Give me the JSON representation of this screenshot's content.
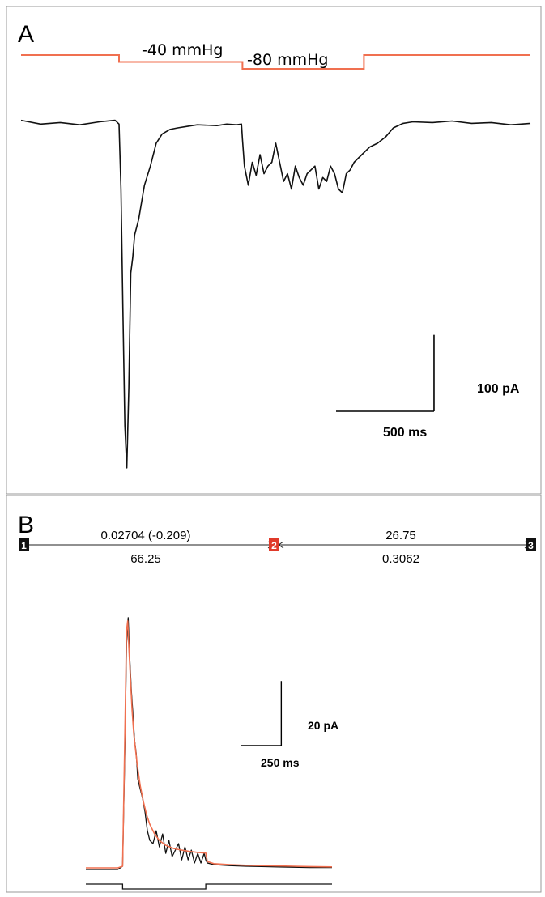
{
  "colors": {
    "pressure_trace": "#f07050",
    "current_trace": "#111111",
    "fit_trace": "#f07050",
    "panel_border": "#999999",
    "cursor_box": "#111111",
    "cursor_box_active": "#e03a2a"
  },
  "panel_a": {
    "letter": "A",
    "pressure_labels": [
      "-40 mmHg",
      "-80 mmHg"
    ],
    "scale_bar": {
      "y_label": "100 pA",
      "x_label": "500 ms"
    }
  },
  "panel_b": {
    "letter": "B",
    "cursors": [
      "1",
      "2",
      "3"
    ],
    "cursor_values": {
      "seg1_top": "0.02704 (-0.209)",
      "seg1_bottom": "66.25",
      "seg2_top": "26.75",
      "seg2_bottom": "0.3062"
    },
    "scale_bar": {
      "y_label": "20 pA",
      "x_label": "250 ms"
    }
  },
  "chart_data": [
    {
      "type": "line",
      "panel": "A",
      "title": "",
      "xlabel": "",
      "ylabel": "",
      "x_unit": "ms",
      "y_unit": "pA",
      "xlim": [
        0,
        2600
      ],
      "ylim": [
        -470,
        25
      ],
      "grid": false,
      "scale_bar": {
        "x": 500,
        "y": 100
      },
      "stimulus": {
        "name": "pressure",
        "unit": "mmHg",
        "segments": [
          {
            "x0": 0,
            "x1": 500,
            "value": 0
          },
          {
            "x0": 500,
            "x1": 1130,
            "value": -40
          },
          {
            "x0": 1130,
            "x1": 1750,
            "value": -80
          },
          {
            "x0": 1750,
            "x1": 2600,
            "value": 0
          }
        ]
      },
      "series": [
        {
          "x": [
            0,
            100,
            200,
            300,
            400,
            480,
            500,
            510,
            520,
            530,
            540,
            550,
            560,
            570,
            580,
            600,
            630,
            660,
            690,
            720,
            760,
            800,
            850,
            900,
            1000,
            1050,
            1100,
            1125,
            1130,
            1140,
            1160,
            1180,
            1200,
            1220,
            1240,
            1260,
            1280,
            1300,
            1320,
            1340,
            1360,
            1380,
            1400,
            1420,
            1440,
            1460,
            1480,
            1500,
            1520,
            1540,
            1560,
            1580,
            1600,
            1620,
            1640,
            1660,
            1680,
            1700,
            1740,
            1780,
            1820,
            1860,
            1900,
            1950,
            2000,
            2100,
            2200,
            2300,
            2400,
            2500,
            2600
          ],
          "y": [
            0,
            -5,
            -3,
            -6,
            -2,
            0,
            -5,
            -90,
            -250,
            -400,
            -455,
            -350,
            -200,
            -180,
            -150,
            -130,
            -85,
            -60,
            -30,
            -18,
            -12,
            -10,
            -8,
            -6,
            -7,
            -5,
            -6,
            -5,
            -25,
            -60,
            -85,
            -55,
            -72,
            -45,
            -70,
            -60,
            -55,
            -30,
            -55,
            -80,
            -70,
            -90,
            -60,
            -75,
            -85,
            -70,
            -65,
            -60,
            -90,
            -75,
            -80,
            -60,
            -70,
            -90,
            -95,
            -70,
            -65,
            -55,
            -45,
            -35,
            -30,
            -22,
            -10,
            -4,
            -2,
            -3,
            -1,
            -4,
            -3,
            -6,
            -4
          ]
        }
      ]
    },
    {
      "type": "line",
      "panel": "B",
      "title": "",
      "xlabel": "",
      "ylabel": "",
      "x_unit": "ms",
      "y_unit": "pA",
      "xlim": [
        0,
        1540
      ],
      "ylim": [
        -2,
        85
      ],
      "grid": false,
      "scale_bar": {
        "x": 250,
        "y": 20
      },
      "stimulus": {
        "segments": [
          {
            "x0": 0,
            "x1": 230,
            "value": 0
          },
          {
            "x0": 230,
            "x1": 750,
            "value": -1
          },
          {
            "x0": 750,
            "x1": 1540,
            "value": 0
          }
        ]
      },
      "series": [
        {
          "x": [
            0,
            100,
            200,
            230,
            245,
            255,
            265,
            275,
            285,
            295,
            305,
            315,
            325,
            340,
            355,
            370,
            385,
            400,
            420,
            440,
            460,
            480,
            500,
            520,
            540,
            560,
            580,
            600,
            620,
            640,
            660,
            680,
            700,
            720,
            740,
            750,
            760,
            800,
            900,
            1000,
            1100,
            1200,
            1300,
            1400,
            1540
          ],
          "y": [
            0,
            0,
            0,
            1,
            40,
            70,
            78,
            65,
            55,
            48,
            40,
            36,
            28,
            25,
            22,
            18,
            12,
            9,
            8,
            12,
            7,
            11,
            5,
            9,
            4,
            6,
            8,
            3,
            7,
            3,
            6,
            2,
            5,
            2,
            5,
            3,
            2,
            1.5,
            1.2,
            1,
            0.9,
            0.8,
            0.7,
            0.6,
            0.6
          ]
        },
        {
          "x": [
            0,
            100,
            200,
            230,
            245,
            255,
            262,
            270,
            280,
            290,
            300,
            320,
            340,
            360,
            380,
            400,
            430,
            460,
            500,
            550,
            600,
            650,
            700,
            750,
            760,
            800,
            900,
            1000,
            1100,
            1200,
            1300,
            1400,
            1540
          ],
          "y": [
            0.5,
            0.5,
            0.5,
            1,
            45,
            74,
            77,
            68,
            58,
            49,
            42,
            33,
            26,
            21,
            17,
            14,
            11,
            9,
            7.5,
            6.5,
            6,
            5.6,
            5.3,
            5.1,
            2.5,
            1.8,
            1.5,
            1.3,
            1.2,
            1.1,
            1.0,
            0.9,
            0.8
          ]
        }
      ]
    }
  ]
}
